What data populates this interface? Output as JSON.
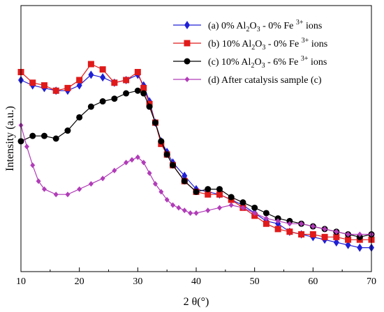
{
  "chart_data": {
    "type": "line",
    "xlabel": "2 θ(°)",
    "ylabel": "Intensity (a.u.)",
    "xlim": [
      10,
      70
    ],
    "ylim": [
      0,
      100
    ],
    "x_ticks": [
      "10",
      "20",
      "30",
      "40",
      "50",
      "60",
      "70"
    ],
    "grid": false,
    "legend_position": "top-right",
    "series": [
      {
        "name": "(a) 0% Al2O3 - 0% Fe 3+ ions",
        "legend": {
          "pre": "(a) 0% Al",
          "sub1": "2",
          "mid1": "O",
          "sub2": "3",
          "mid2": " - 0% Fe ",
          "sup": "3+",
          "post": " ions"
        },
        "color": "#1f1fd6",
        "marker": "diamond",
        "x": [
          10,
          12,
          14,
          16,
          18,
          20,
          22,
          24,
          26,
          28,
          30,
          31,
          32,
          33,
          34,
          35,
          36,
          38,
          40,
          42,
          44,
          46,
          48,
          50,
          52,
          54,
          56,
          58,
          60,
          62,
          64,
          66,
          68,
          70
        ],
        "y": [
          72,
          70,
          69,
          68,
          68,
          70,
          74,
          73,
          71,
          72,
          74,
          70,
          64,
          56,
          49,
          45,
          41,
          36,
          31,
          30,
          29,
          27,
          25,
          22,
          19,
          18,
          15,
          14,
          13,
          12,
          11,
          10,
          9,
          9
        ]
      },
      {
        "name": "(b) 10% Al2O3 - 0% Fe 3+ ions",
        "legend": {
          "pre": "(b) 10% Al",
          "sub1": "2",
          "mid1": "O",
          "sub2": "3",
          "mid2": " - 0% Fe ",
          "sup": "3+",
          "post": " ions"
        },
        "color": "#e01a1a",
        "marker": "square",
        "x": [
          10,
          12,
          14,
          16,
          18,
          20,
          22,
          24,
          26,
          28,
          30,
          31,
          32,
          33,
          34,
          35,
          36,
          38,
          40,
          42,
          44,
          46,
          48,
          50,
          52,
          54,
          56,
          58,
          60,
          62,
          64,
          66,
          68,
          70
        ],
        "y": [
          75,
          71,
          70,
          68,
          69,
          72,
          78,
          76,
          71,
          72,
          75,
          69,
          63,
          56,
          48,
          44,
          40,
          34,
          30,
          29,
          29,
          27,
          24,
          21,
          18,
          16,
          15,
          14,
          14,
          13,
          13,
          12,
          12,
          12
        ]
      },
      {
        "name": "(c) 10% Al2O3 - 6% Fe 3+ ions",
        "legend": {
          "pre": "(c) 10% Al",
          "sub1": "2",
          "mid1": "O",
          "sub2": "3",
          "mid2": " - 6% Fe ",
          "sup": "3+",
          "post": " ions"
        },
        "color": "#000000",
        "marker": "circle",
        "x": [
          10,
          12,
          14,
          16,
          18,
          20,
          22,
          24,
          26,
          28,
          30,
          31,
          32,
          33,
          34,
          35,
          36,
          38,
          40,
          42,
          44,
          46,
          48,
          50,
          52,
          54,
          56,
          58,
          60,
          62,
          64,
          66,
          68,
          70
        ],
        "y": [
          49,
          51,
          51,
          50,
          53,
          58,
          62,
          64,
          65,
          67,
          68,
          67,
          62,
          56,
          49,
          44,
          40,
          34,
          30,
          31,
          31,
          28,
          26,
          24,
          22,
          20,
          19,
          18,
          17,
          16,
          15,
          14,
          13,
          14
        ]
      },
      {
        "name": "(d) After catalysis sample (c)",
        "legend": {
          "pre": "(d) After catalysis sample (c)",
          "sub1": "",
          "mid1": "",
          "sub2": "",
          "mid2": "",
          "sup": "",
          "post": ""
        },
        "color": "#b13cb8",
        "marker": "diamond-small",
        "x": [
          10,
          11,
          12,
          13,
          14,
          16,
          18,
          20,
          22,
          24,
          26,
          28,
          29,
          30,
          31,
          32,
          33,
          34,
          35,
          36,
          37,
          38,
          39,
          40,
          42,
          44,
          46,
          48,
          50,
          52,
          54,
          56,
          58,
          60,
          62,
          64,
          66,
          68,
          70
        ],
        "y": [
          55,
          47,
          40,
          34,
          31,
          29,
          29,
          31,
          33,
          35,
          38,
          41,
          42,
          43,
          41,
          37,
          33,
          30,
          27,
          25,
          24,
          23,
          22,
          22,
          23,
          24,
          25,
          24,
          22,
          20,
          19,
          18,
          18,
          17,
          16,
          15,
          14,
          14,
          14
        ]
      }
    ]
  }
}
